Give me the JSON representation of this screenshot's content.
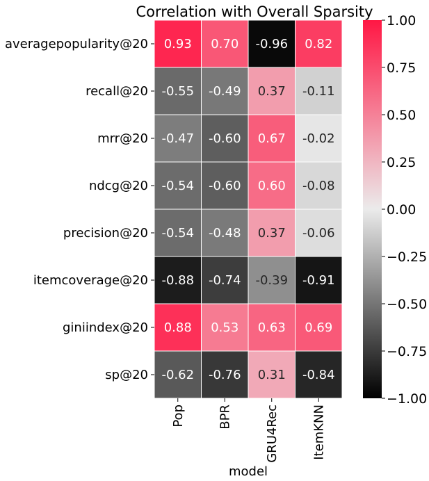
{
  "chart_data": {
    "type": "heatmap",
    "title": "Correlation with Overall Sparsity",
    "xlabel": "model",
    "ylabel": "",
    "x_categories": [
      "Pop",
      "BPR",
      "GRU4Rec",
      "ItemKNN"
    ],
    "y_categories": [
      "averagepopularity@20",
      "recall@20",
      "mrr@20",
      "ndcg@20",
      "precision@20",
      "itemcoverage@20",
      "giniindex@20",
      "sp@20"
    ],
    "values": [
      [
        0.93,
        0.7,
        -0.96,
        0.82
      ],
      [
        -0.55,
        -0.49,
        0.37,
        -0.11
      ],
      [
        -0.47,
        -0.6,
        0.67,
        -0.02
      ],
      [
        -0.54,
        -0.6,
        0.6,
        -0.08
      ],
      [
        -0.54,
        -0.48,
        0.37,
        -0.06
      ],
      [
        -0.88,
        -0.74,
        -0.39,
        -0.91
      ],
      [
        0.88,
        0.53,
        0.63,
        0.69
      ],
      [
        -0.62,
        -0.76,
        0.31,
        -0.84
      ]
    ],
    "value_labels": [
      [
        "0.93",
        "0.70",
        "-0.96",
        "0.82"
      ],
      [
        "-0.55",
        "-0.49",
        "0.37",
        "-0.11"
      ],
      [
        "-0.47",
        "-0.60",
        "0.67",
        "-0.02"
      ],
      [
        "-0.54",
        "-0.60",
        "0.60",
        "-0.08"
      ],
      [
        "-0.54",
        "-0.48",
        "0.37",
        "-0.06"
      ],
      [
        "-0.88",
        "-0.74",
        "-0.39",
        "-0.91"
      ],
      [
        "0.88",
        "0.53",
        "0.63",
        "0.69"
      ],
      [
        "-0.62",
        "-0.76",
        "0.31",
        "-0.84"
      ]
    ],
    "vmin": -1.0,
    "vmax": 1.0,
    "colorbar_ticks": [
      1.0,
      0.75,
      0.5,
      0.25,
      0.0,
      -0.25,
      -0.5,
      -0.75,
      -1.0
    ],
    "colorbar_tick_labels": [
      "1.00",
      "0.75",
      "0.50",
      "0.25",
      "0.00",
      "−0.25",
      "−0.50",
      "−0.75",
      "−1.00"
    ],
    "colormap": {
      "low": "#000000",
      "mid": "#ebebeb",
      "high": "#ff1744"
    }
  }
}
